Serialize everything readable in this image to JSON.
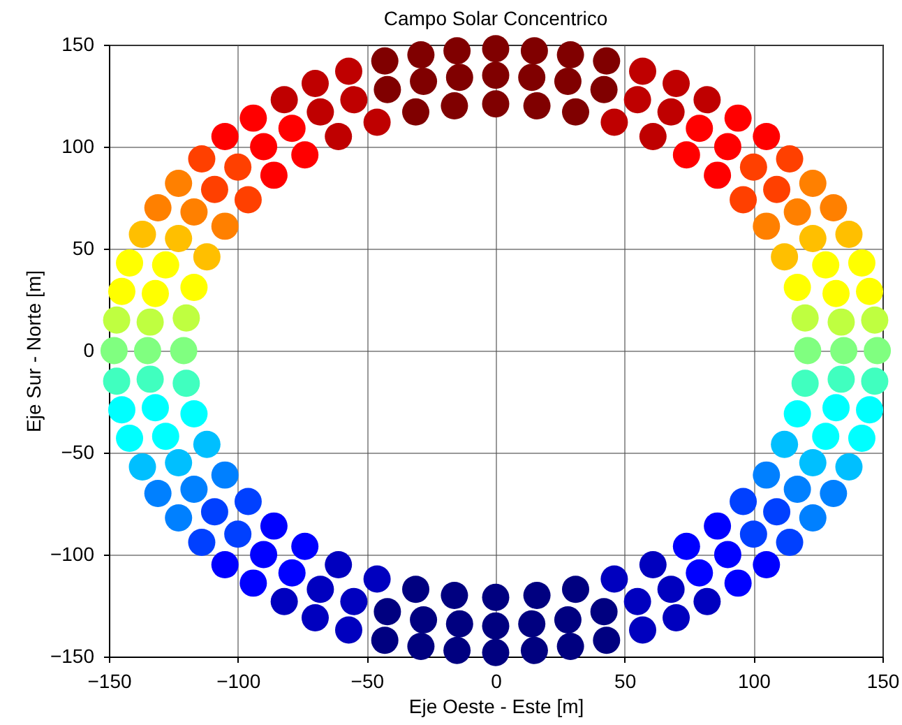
{
  "chart_data": {
    "type": "scatter",
    "title": "Campo Solar Concentrico",
    "xlabel": "Eje Oeste - Este [m]",
    "ylabel": "Eje Sur - Norte [m]",
    "xlim": [
      -150,
      150
    ],
    "ylim": [
      -150,
      150
    ],
    "xticks": [
      -150,
      -100,
      -50,
      0,
      50,
      100,
      150
    ],
    "yticks": [
      -150,
      -100,
      -50,
      0,
      50,
      100,
      150
    ],
    "grid": true,
    "marker": "circle",
    "series": [
      {
        "x": [
          148,
          147,
          145,
          142,
          137,
          131,
          123,
          114,
          105,
          94,
          82,
          70,
          57,
          43,
          29,
          15,
          0,
          -15,
          -29,
          -43,
          -57,
          -70,
          -82,
          -94,
          -105,
          -114,
          -123,
          -131,
          -137,
          -142,
          -145,
          -147,
          -148,
          -147,
          -145,
          -142,
          -137,
          -131,
          -123,
          -114,
          -105,
          -94,
          -82,
          -70,
          -57,
          -43,
          -29,
          -15,
          0,
          15,
          29,
          43,
          57,
          70,
          82,
          94,
          105,
          114,
          123,
          131,
          137,
          142,
          145,
          147
        ],
        "values": [
          0,
          15,
          29,
          43,
          57,
          70,
          82,
          94,
          105,
          114,
          123,
          131,
          137,
          142,
          145,
          147,
          148,
          147,
          145,
          142,
          137,
          131,
          123,
          114,
          105,
          94,
          82,
          70,
          57,
          43,
          29,
          15,
          0,
          -15,
          -29,
          -43,
          -57,
          -70,
          -82,
          -94,
          -105,
          -114,
          -123,
          -131,
          -137,
          -142,
          -145,
          -147,
          -148,
          -147,
          -145,
          -142,
          -137,
          -131,
          -123,
          -114,
          -105,
          -94,
          -82,
          -70,
          -57,
          -43,
          -29,
          -15
        ],
        "colors": [
          "#80ff80",
          "#bfff40",
          "#ffff00",
          "#ffff00",
          "#ffbf00",
          "#ff8000",
          "#ff8000",
          "#ff4000",
          "#ff0000",
          "#ff0000",
          "#bf0000",
          "#bf0000",
          "#bf0000",
          "#800000",
          "#800000",
          "#800000",
          "#800000",
          "#800000",
          "#800000",
          "#800000",
          "#bf0000",
          "#bf0000",
          "#bf0000",
          "#ff0000",
          "#ff0000",
          "#ff4000",
          "#ff8000",
          "#ff8000",
          "#ffbf00",
          "#ffff00",
          "#ffff00",
          "#bfff40",
          "#80ff80",
          "#40ffbf",
          "#00ffff",
          "#00ffff",
          "#00bfff",
          "#0080ff",
          "#0080ff",
          "#0040ff",
          "#0000ff",
          "#0000ff",
          "#0000bf",
          "#0000bf",
          "#0000bf",
          "#000080",
          "#000080",
          "#000080",
          "#000080",
          "#000080",
          "#000080",
          "#000080",
          "#0000bf",
          "#0000bf",
          "#0000bf",
          "#0000ff",
          "#0000ff",
          "#0040ff",
          "#0080ff",
          "#0080ff",
          "#00bfff",
          "#00ffff",
          "#00ffff",
          "#40ffbf"
        ]
      },
      {
        "x": [
          135,
          134,
          132,
          128,
          123,
          117,
          109,
          100,
          90,
          79,
          68,
          55,
          42,
          28,
          14,
          0,
          -14,
          -28,
          -42,
          -55,
          -68,
          -79,
          -90,
          -100,
          -109,
          -117,
          -123,
          -128,
          -132,
          -134,
          -135,
          -134,
          -132,
          -128,
          -123,
          -117,
          -109,
          -100,
          -90,
          -79,
          -68,
          -55,
          -42,
          -28,
          -14,
          0,
          14,
          28,
          42,
          55,
          68,
          79,
          90,
          100,
          109,
          117,
          123,
          128,
          132,
          134
        ],
        "values": [
          0,
          14,
          28,
          42,
          55,
          68,
          79,
          90,
          100,
          109,
          117,
          123,
          128,
          132,
          134,
          135,
          134,
          132,
          128,
          123,
          117,
          109,
          100,
          90,
          79,
          68,
          55,
          42,
          28,
          14,
          0,
          -14,
          -28,
          -42,
          -55,
          -68,
          -79,
          -90,
          -100,
          -109,
          -117,
          -123,
          -128,
          -132,
          -134,
          -135,
          -134,
          -132,
          -128,
          -123,
          -117,
          -109,
          -100,
          -90,
          -79,
          -68,
          -55,
          -42,
          -28,
          -14
        ],
        "colors": [
          "#80ff80",
          "#bfff40",
          "#ffff00",
          "#ffff00",
          "#ffbf00",
          "#ff8000",
          "#ff4000",
          "#ff4000",
          "#ff0000",
          "#ff0000",
          "#bf0000",
          "#bf0000",
          "#800000",
          "#800000",
          "#800000",
          "#800000",
          "#800000",
          "#800000",
          "#800000",
          "#bf0000",
          "#bf0000",
          "#ff0000",
          "#ff0000",
          "#ff4000",
          "#ff4000",
          "#ff8000",
          "#ffbf00",
          "#ffff00",
          "#ffff00",
          "#bfff40",
          "#80ff80",
          "#40ffbf",
          "#00ffff",
          "#00ffff",
          "#00bfff",
          "#0080ff",
          "#0040ff",
          "#0040ff",
          "#0000ff",
          "#0000ff",
          "#0000bf",
          "#0000bf",
          "#000080",
          "#000080",
          "#000080",
          "#000080",
          "#000080",
          "#000080",
          "#000080",
          "#0000bf",
          "#0000bf",
          "#0000ff",
          "#0000ff",
          "#0040ff",
          "#0040ff",
          "#0080ff",
          "#00bfff",
          "#00ffff",
          "#00ffff",
          "#40ffbf"
        ]
      },
      {
        "x": [
          121,
          120,
          117,
          112,
          105,
          96,
          86,
          74,
          61,
          46,
          31,
          16,
          0,
          -16,
          -31,
          -46,
          -61,
          -74,
          -86,
          -96,
          -105,
          -112,
          -117,
          -120,
          -121,
          -120,
          -117,
          -112,
          -105,
          -96,
          -86,
          -74,
          -61,
          -46,
          -31,
          -16,
          0,
          16,
          31,
          46,
          61,
          74,
          86,
          96,
          105,
          112,
          117,
          120
        ],
        "values": [
          0,
          16,
          31,
          46,
          61,
          74,
          86,
          96,
          105,
          112,
          117,
          120,
          121,
          120,
          117,
          112,
          105,
          96,
          86,
          74,
          61,
          46,
          31,
          16,
          0,
          -16,
          -31,
          -46,
          -61,
          -74,
          -86,
          -96,
          -105,
          -112,
          -117,
          -120,
          -121,
          -120,
          -117,
          -112,
          -105,
          -96,
          -86,
          -74,
          -61,
          -46,
          -31,
          -16
        ],
        "colors": [
          "#80ff80",
          "#bfff40",
          "#ffff00",
          "#ffbf00",
          "#ff8000",
          "#ff4000",
          "#ff0000",
          "#ff0000",
          "#bf0000",
          "#bf0000",
          "#800000",
          "#800000",
          "#800000",
          "#800000",
          "#800000",
          "#bf0000",
          "#bf0000",
          "#ff0000",
          "#ff0000",
          "#ff4000",
          "#ff8000",
          "#ffbf00",
          "#ffff00",
          "#bfff40",
          "#80ff80",
          "#40ffbf",
          "#00ffff",
          "#00bfff",
          "#0080ff",
          "#0040ff",
          "#0000ff",
          "#0000ff",
          "#0000bf",
          "#0000bf",
          "#000080",
          "#000080",
          "#000080",
          "#000080",
          "#000080",
          "#0000bf",
          "#0000bf",
          "#0000ff",
          "#0000ff",
          "#0040ff",
          "#0080ff",
          "#00bfff",
          "#00ffff",
          "#40ffbf"
        ]
      }
    ]
  }
}
